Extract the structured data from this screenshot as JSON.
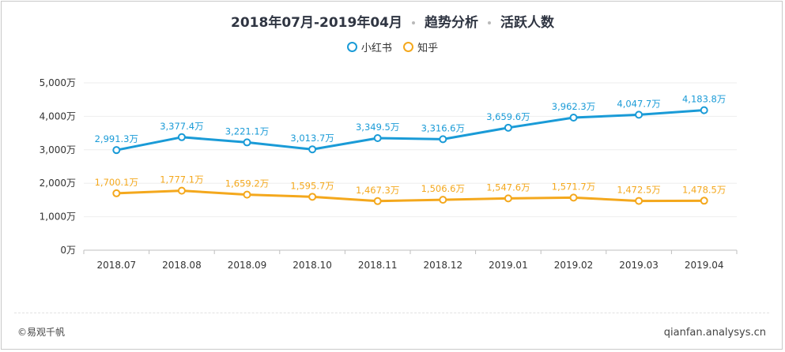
{
  "header": {
    "title_range": "2018年07月-2019年04月",
    "title_topic": "趋势分析",
    "title_metric": "活跃人数"
  },
  "footer": {
    "copyright": "©易观千帆",
    "site": "qianfan.analysys.cn"
  },
  "chart_data": {
    "type": "line",
    "title": "2018年07月-2019年04月 · 趋势分析 · 活跃人数",
    "categories": [
      "2018.07",
      "2018.08",
      "2018.09",
      "2018.10",
      "2018.11",
      "2018.12",
      "2019.01",
      "2019.02",
      "2019.03",
      "2019.04"
    ],
    "y_ticks": [
      0,
      1000,
      2000,
      3000,
      4000,
      5000
    ],
    "y_tick_labels": [
      "0万",
      "1,000万",
      "2,000万",
      "3,000万",
      "4,000万",
      "5,000万"
    ],
    "ylim": [
      0,
      5000
    ],
    "grid": true,
    "legend_position": "top-center",
    "series": [
      {
        "name": "小红书",
        "color": "#1a9bd7",
        "values": [
          2991.3,
          3377.4,
          3221.1,
          3013.7,
          3349.5,
          3316.6,
          3659.6,
          3962.3,
          4047.7,
          4183.8
        ],
        "labels": [
          "2,991.3万",
          "3,377.4万",
          "3,221.1万",
          "3,013.7万",
          "3,349.5万",
          "3,316.6万",
          "3,659.6万",
          "3,962.3万",
          "4,047.7万",
          "4,183.8万"
        ]
      },
      {
        "name": "知乎",
        "color": "#f4a81d",
        "values": [
          1700.1,
          1777.1,
          1659.2,
          1595.7,
          1467.3,
          1506.6,
          1547.6,
          1571.7,
          1472.5,
          1478.5
        ],
        "labels": [
          "1,700.1万",
          "1,777.1万",
          "1,659.2万",
          "1,595.7万",
          "1,467.3万",
          "1,506.6万",
          "1,547.6万",
          "1,571.7万",
          "1,472.5万",
          "1,478.5万"
        ]
      }
    ]
  }
}
